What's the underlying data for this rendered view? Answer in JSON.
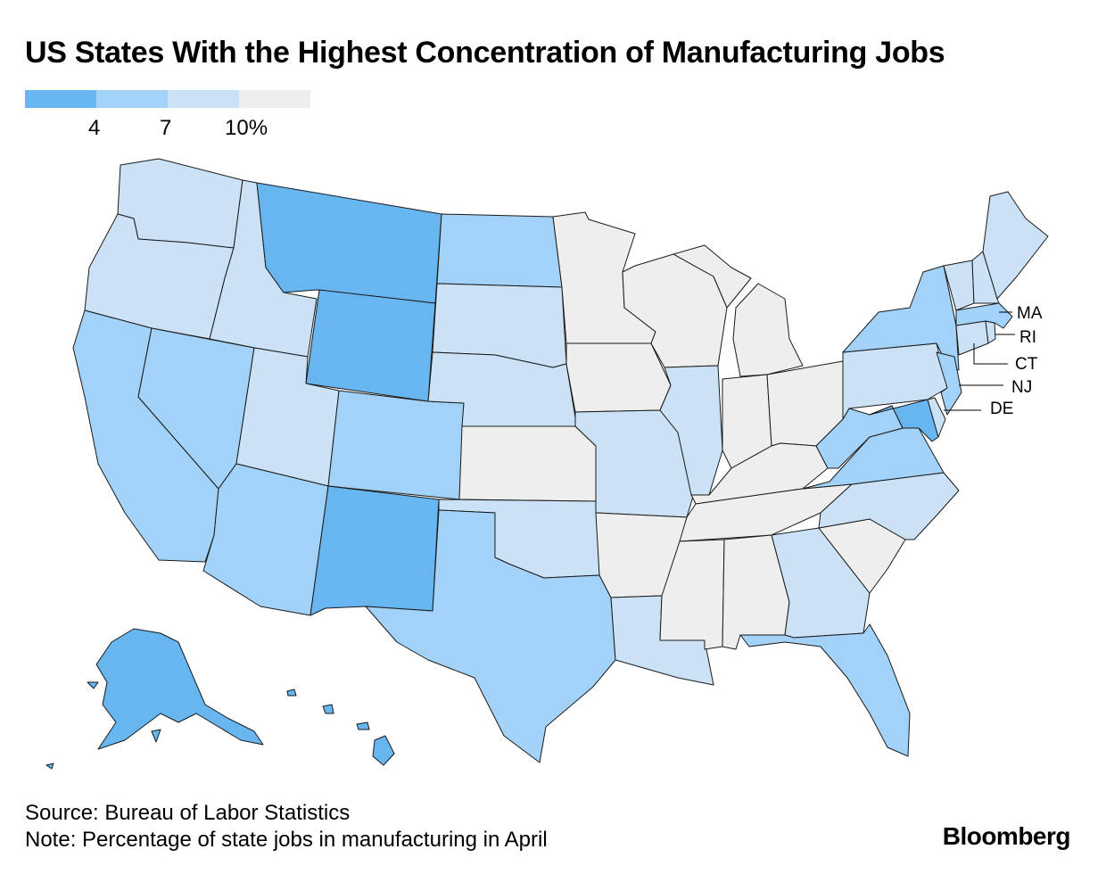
{
  "title": "US States With the Highest Concentration of Manufacturing Jobs",
  "legend": {
    "colors": [
      "#67b6f0",
      "#a2d2f8",
      "#cbe2f6",
      "#eeeeee"
    ],
    "ticks": [
      "4",
      "7",
      "10%"
    ]
  },
  "map": {
    "unit": "Percentage of state jobs in manufacturing",
    "classes": {
      "c1": "#67b6f0",
      "c2": "#a2d2f8",
      "c3": "#cbe2f6",
      "c4": "#eeeeee"
    },
    "callouts": [
      "MA",
      "RI",
      "CT",
      "NJ",
      "DE"
    ]
  },
  "footer": {
    "source": "Source: Bureau of Labor Statistics",
    "note": "Note: Percentage of state jobs in manufacturing in April"
  },
  "brand": "Bloomberg"
}
